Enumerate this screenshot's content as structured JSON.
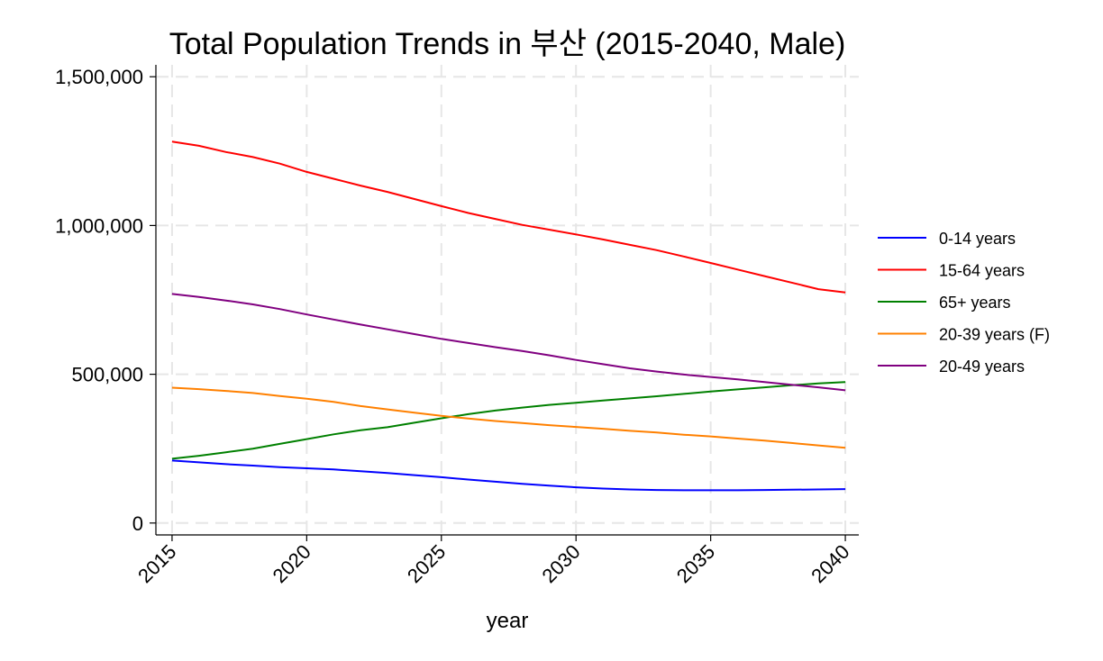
{
  "chart_data": {
    "type": "line",
    "title": "Total Population Trends in 부산 (2015-2040, Male)",
    "xlabel": "year",
    "ylabel": "",
    "x": [
      2015,
      2016,
      2017,
      2018,
      2019,
      2020,
      2021,
      2022,
      2023,
      2024,
      2025,
      2026,
      2027,
      2028,
      2029,
      2030,
      2031,
      2032,
      2033,
      2034,
      2035,
      2036,
      2037,
      2038,
      2039,
      2040
    ],
    "xlim": [
      2014.4,
      2040.5
    ],
    "ylim": [
      -40000,
      1540000
    ],
    "x_ticks": [
      2015,
      2020,
      2025,
      2030,
      2035,
      2040
    ],
    "x_tick_labels": [
      "2015",
      "2020",
      "2025",
      "2030",
      "2035",
      "2040"
    ],
    "y_ticks": [
      0,
      500000,
      1000000,
      1500000
    ],
    "y_tick_labels": [
      "0",
      "500,000",
      "1,000,000",
      "1,500,000"
    ],
    "grid": true,
    "legend_position": "right",
    "series": [
      {
        "name": "0-14 years",
        "color": "#0000ff",
        "values": [
          210000,
          204000,
          198000,
          193000,
          188000,
          184000,
          180000,
          174000,
          168000,
          161000,
          154000,
          146000,
          139000,
          132000,
          126000,
          120000,
          116000,
          113000,
          111000,
          110000,
          110000,
          110000,
          111000,
          112000,
          113000,
          114000
        ]
      },
      {
        "name": "15-64 years",
        "color": "#ff0000",
        "values": [
          1282000,
          1268000,
          1247000,
          1230000,
          1208000,
          1180000,
          1157000,
          1134000,
          1113000,
          1089000,
          1065000,
          1042000,
          1022000,
          1002000,
          986000,
          970000,
          953000,
          935000,
          917000,
          896000,
          874000,
          852000,
          830000,
          808000,
          786000,
          775000
        ]
      },
      {
        "name": "65+ years",
        "color": "#008000",
        "values": [
          216000,
          226000,
          238000,
          250000,
          266000,
          282000,
          298000,
          312000,
          322000,
          337000,
          352000,
          366000,
          378000,
          388000,
          397000,
          404000,
          412000,
          419000,
          426000,
          434000,
          442000,
          449000,
          456000,
          463000,
          469000,
          474000
        ]
      },
      {
        "name": "20-39 years (F)",
        "color": "#ff8000",
        "values": [
          455000,
          450000,
          444000,
          437000,
          427000,
          418000,
          407000,
          393000,
          382000,
          371000,
          360000,
          351000,
          343000,
          336000,
          329000,
          323000,
          317000,
          310000,
          304000,
          297000,
          291000,
          284000,
          277000,
          269000,
          261000,
          253000
        ]
      },
      {
        "name": "20-49 years",
        "color": "#800080",
        "values": [
          770000,
          760000,
          748000,
          735000,
          719000,
          701000,
          684000,
          667000,
          651000,
          635000,
          619000,
          605000,
          591000,
          578000,
          564000,
          548000,
          534000,
          520000,
          509000,
          499000,
          491000,
          483000,
          474000,
          465000,
          456000,
          446000
        ]
      }
    ]
  }
}
